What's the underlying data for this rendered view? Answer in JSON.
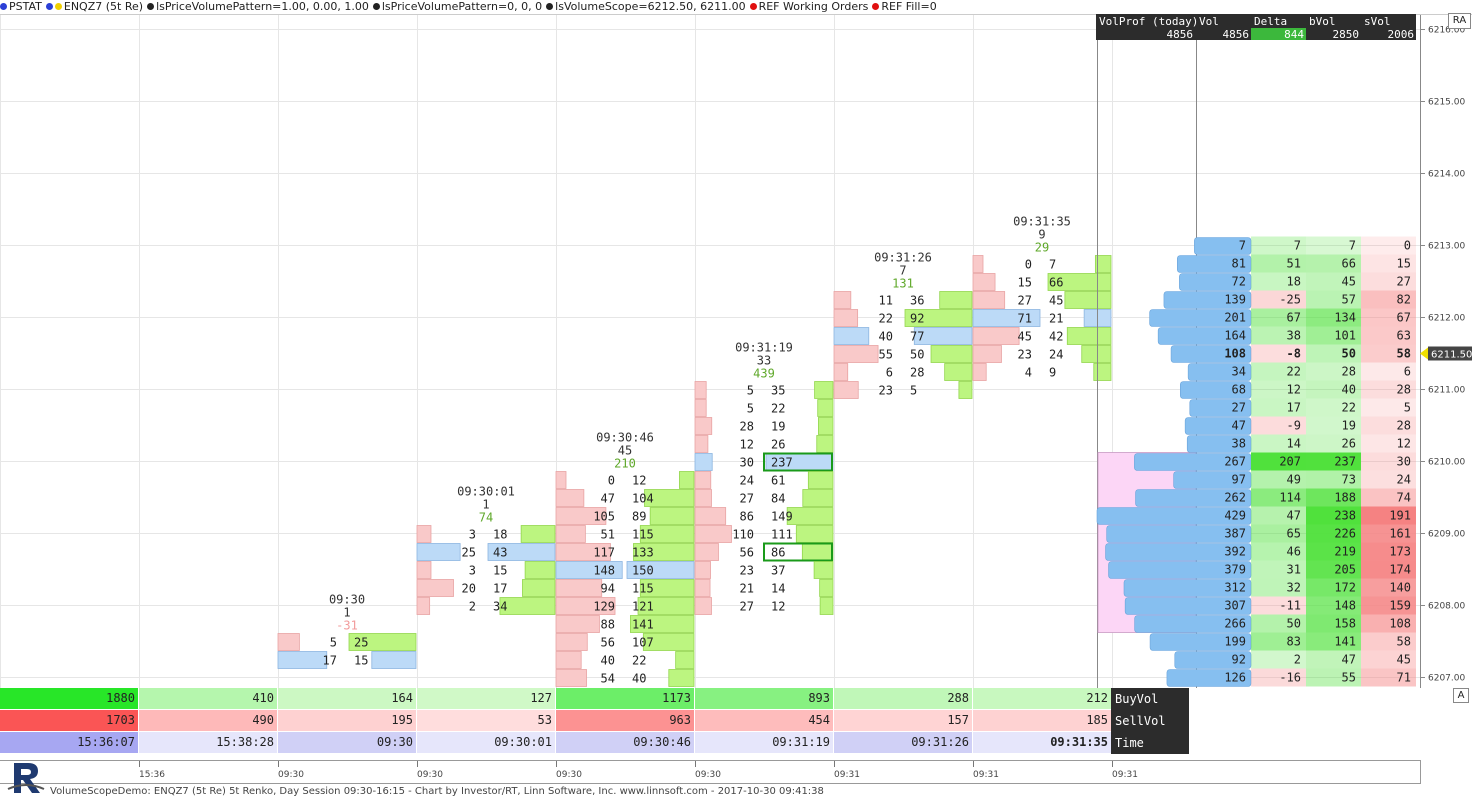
{
  "toolbar": {
    "items": [
      {
        "label": "PSTAT",
        "dots": [
          "#2b3fd6"
        ]
      },
      {
        "label": "ENQZ7 (5t Re)",
        "dots": [
          "#2b3fd6",
          "#f0d000"
        ]
      },
      {
        "label": "lsPriceVolumePattern=1.00, 0.00, 1.00",
        "dots": [
          "#222222"
        ]
      },
      {
        "label": "lsPriceVolumePattern=0, 0, 0",
        "dots": [
          "#222222"
        ]
      },
      {
        "label": "lsVolumeScope=6212.50, 6211.00",
        "dots": [
          "#222222"
        ]
      },
      {
        "label": "REF Working Orders",
        "dots": [
          "#e01010"
        ]
      },
      {
        "label": "REF Fill=0",
        "dots": [
          "#e01010"
        ]
      }
    ]
  },
  "price_axis": {
    "labels": [
      "6216.00",
      "6215.00",
      "6214.00",
      "6213.00",
      "6212.00",
      "6211.00",
      "6210.00",
      "6209.00",
      "6208.00",
      "6207.00"
    ],
    "current_price": "6211.50",
    "ra_label": "RA",
    "a_label": "A"
  },
  "colors": {
    "bid_fill": "#f9c9c9",
    "bid_stroke": "#e8a3a3",
    "ask_fill": "#bcf580",
    "ask_stroke": "#93d64e",
    "poc_fill": "#bcdaf7",
    "poc_stroke": "#8cb5e0",
    "highlight": "#1a9a1a",
    "grid": "#e6e6e6",
    "vp_bar": "#86bff0",
    "vp_area": "#fcd6f6",
    "profile_header": "#2c2c2c",
    "delta_green": "#3cb83c"
  },
  "bars": [
    {
      "time": "09:30",
      "count": "1",
      "delta": "-31",
      "delta_neg": true,
      "levels": [
        [
          "5",
          "25"
        ],
        [
          "17",
          "15"
        ]
      ]
    },
    {
      "time": "09:30:01",
      "count": "1",
      "delta": "74",
      "delta_neg": false,
      "levels": [
        [
          "3",
          "18"
        ],
        [
          "25",
          "43"
        ],
        [
          "3",
          "15"
        ],
        [
          "20",
          "17"
        ],
        [
          "2",
          "34"
        ]
      ]
    },
    {
      "time": "09:30:46",
      "count": "45",
      "delta": "210",
      "delta_neg": false,
      "levels": [
        [
          "0",
          "12"
        ],
        [
          "47",
          "104"
        ],
        [
          "105",
          "89"
        ],
        [
          "51",
          "115"
        ],
        [
          "117",
          "133"
        ],
        [
          "148",
          "150"
        ],
        [
          "94",
          "115"
        ],
        [
          "129",
          "121"
        ],
        [
          "88",
          "141"
        ],
        [
          "56",
          "107"
        ],
        [
          "40",
          "22"
        ],
        [
          "54",
          "40"
        ]
      ]
    },
    {
      "time": "09:31:19",
      "count": "33",
      "delta": "439",
      "delta_neg": false,
      "levels": [
        [
          "5",
          "35"
        ],
        [
          "5",
          "22"
        ],
        [
          "28",
          "19"
        ],
        [
          "12",
          "26"
        ],
        [
          "30",
          "237"
        ],
        [
          "24",
          "61"
        ],
        [
          "27",
          "84"
        ],
        [
          "86",
          "149"
        ],
        [
          "110",
          "111"
        ],
        [
          "56",
          "86"
        ],
        [
          "23",
          "37"
        ],
        [
          "21",
          "14"
        ],
        [
          "27",
          "12"
        ]
      ]
    },
    {
      "time": "09:31:26",
      "count": "7",
      "delta": "131",
      "delta_neg": false,
      "levels": [
        [
          "11",
          "36"
        ],
        [
          "22",
          "92"
        ],
        [
          "40",
          "77"
        ],
        [
          "55",
          "50"
        ],
        [
          "6",
          "28"
        ],
        [
          "23",
          "5"
        ]
      ]
    },
    {
      "time": "09:31:35",
      "count": "9",
      "delta": "29",
      "delta_neg": false,
      "levels": [
        [
          "0",
          "7"
        ],
        [
          "15",
          "66"
        ],
        [
          "27",
          "45"
        ],
        [
          "71",
          "21"
        ],
        [
          "45",
          "42"
        ],
        [
          "23",
          "24"
        ],
        [
          "4",
          "9"
        ]
      ]
    }
  ],
  "summary": {
    "buy_label": "BuyVol",
    "sell_label": "SellVol",
    "time_label": "Time",
    "buy": [
      "1880",
      "410",
      "164",
      "127",
      "1173",
      "893",
      "288",
      "212"
    ],
    "sell": [
      "1703",
      "490",
      "195",
      "53",
      "963",
      "454",
      "157",
      "185"
    ],
    "time": [
      "15:36:07",
      "15:38:28",
      "09:30",
      "09:30:01",
      "09:30:46",
      "09:31:19",
      "09:31:26",
      "09:31:35"
    ]
  },
  "profile": {
    "headers": [
      "VolProf (today)",
      "Vol",
      "Delta",
      "bVol",
      "sVol"
    ],
    "totals": [
      "4856",
      "4856",
      "844",
      "2850",
      "2006"
    ],
    "rows": [
      [
        "7",
        "7",
        "7",
        "0"
      ],
      [
        "81",
        "51",
        "66",
        "15"
      ],
      [
        "72",
        "18",
        "45",
        "27"
      ],
      [
        "139",
        "-25",
        "57",
        "82"
      ],
      [
        "201",
        "67",
        "134",
        "67"
      ],
      [
        "164",
        "38",
        "101",
        "63"
      ],
      [
        "108",
        "-8",
        "50",
        "58"
      ],
      [
        "34",
        "22",
        "28",
        "6"
      ],
      [
        "68",
        "12",
        "40",
        "28"
      ],
      [
        "27",
        "17",
        "22",
        "5"
      ],
      [
        "47",
        "-9",
        "19",
        "28"
      ],
      [
        "38",
        "14",
        "26",
        "12"
      ],
      [
        "267",
        "207",
        "237",
        "30"
      ],
      [
        "97",
        "49",
        "73",
        "24"
      ],
      [
        "262",
        "114",
        "188",
        "74"
      ],
      [
        "429",
        "47",
        "238",
        "191"
      ],
      [
        "387",
        "65",
        "226",
        "161"
      ],
      [
        "392",
        "46",
        "219",
        "173"
      ],
      [
        "379",
        "31",
        "205",
        "174"
      ],
      [
        "312",
        "32",
        "172",
        "140"
      ],
      [
        "307",
        "-11",
        "148",
        "159"
      ],
      [
        "266",
        "50",
        "158",
        "108"
      ],
      [
        "199",
        "83",
        "141",
        "58"
      ],
      [
        "92",
        "2",
        "47",
        "45"
      ],
      [
        "126",
        "-16",
        "55",
        "71"
      ]
    ]
  },
  "time_axis": {
    "labels": [
      "15:36",
      "09:30",
      "09:30",
      "09:30",
      "09:30",
      "09:31",
      "09:31",
      "09:31"
    ]
  },
  "footer": {
    "text": "VolumeScopeDemo: ENQZ7 (5t Re) 5t Renko, Day Session 09:30-16:15 - Chart by Investor/RT, Linn Software, Inc. www.linnsoft.com - 2017-10-30 09:41:38"
  }
}
